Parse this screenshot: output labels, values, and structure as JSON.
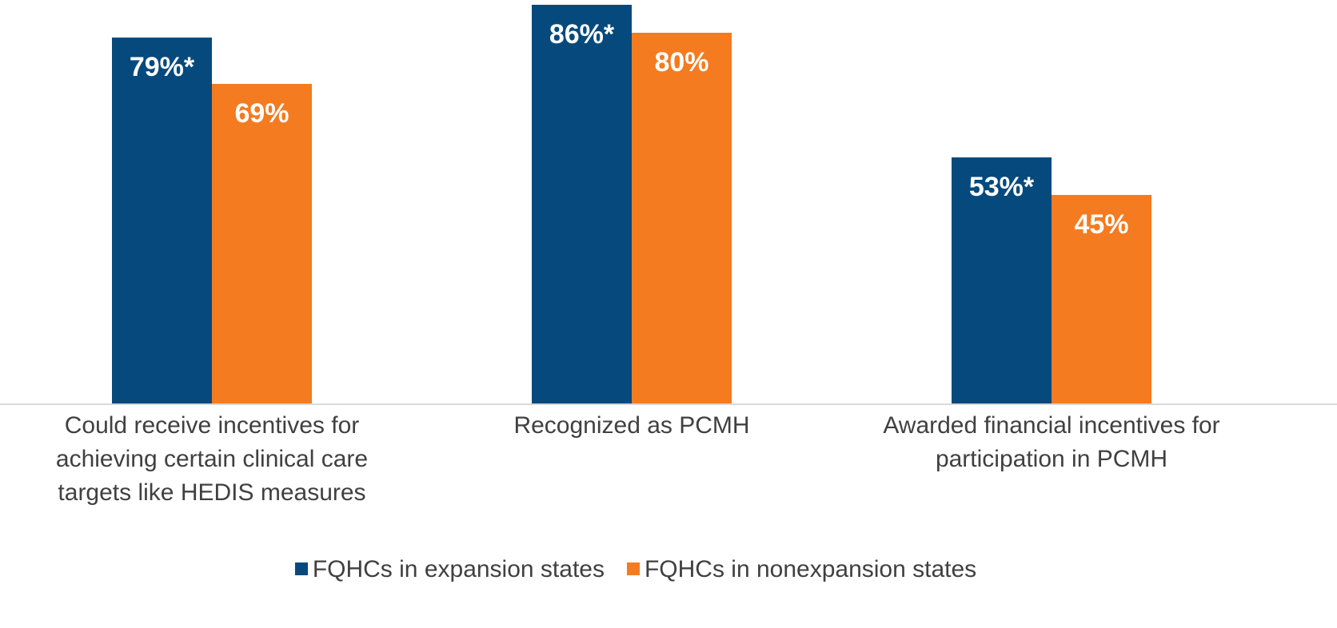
{
  "chart_data": {
    "type": "bar",
    "categories": [
      "Could receive incentives for achieving certain clinical care targets like HEDIS measures",
      "Recognized as PCMH",
      "Awarded financial incentives for participation in PCMH"
    ],
    "series": [
      {
        "name": "FQHCs in expansion states",
        "color": "#064a7d",
        "values": [
          79,
          86,
          53
        ],
        "value_labels": [
          "79%*",
          "86%*",
          "53%*"
        ]
      },
      {
        "name": "FQHCs in nonexpansion states",
        "color": "#f47b20",
        "values": [
          69,
          80,
          45
        ],
        "value_labels": [
          "69%",
          "80%",
          "45%"
        ]
      }
    ],
    "legend": "bottom"
  }
}
